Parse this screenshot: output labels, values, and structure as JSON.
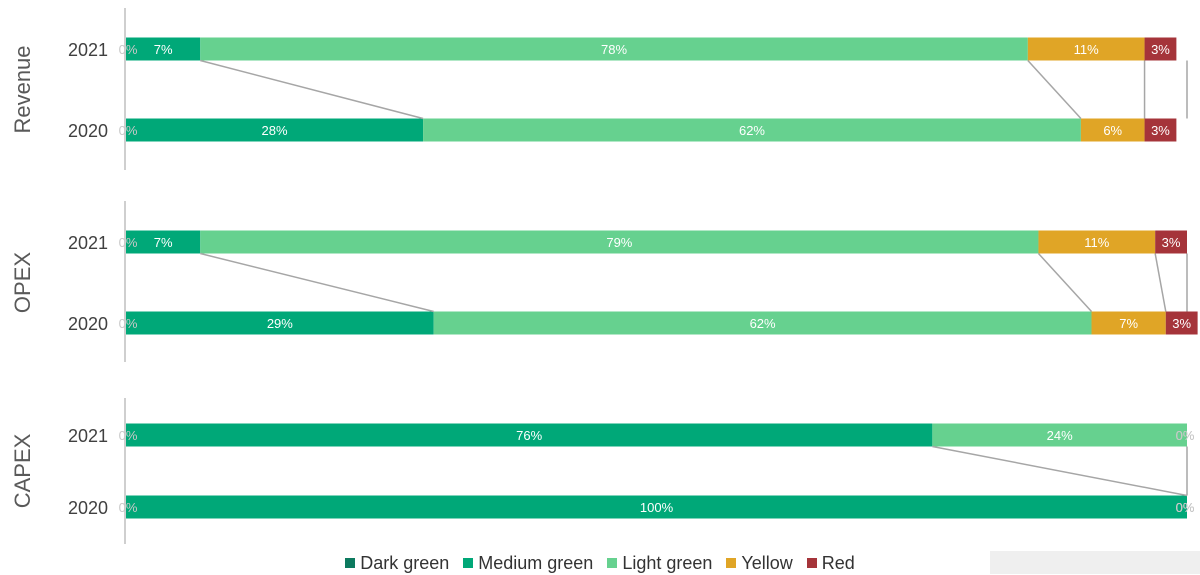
{
  "colors": {
    "Dark green": "#0d7a5f",
    "Medium green": "#00a878",
    "Light green": "#66d18f",
    "Yellow": "#e0a526",
    "Red": "#a5343a",
    "connector": "#a6a6a6",
    "axis_line": "#bfbfbf",
    "text": "#595959"
  },
  "legend": [
    "Dark green",
    "Medium green",
    "Light green",
    "Yellow",
    "Red"
  ],
  "chart_data": {
    "type": "bar",
    "orientation": "horizontal-stacked-100",
    "series_names": [
      "Dark green",
      "Medium green",
      "Light green",
      "Yellow",
      "Red"
    ],
    "groups": [
      {
        "name": "Revenue",
        "bars": [
          {
            "year": "2021",
            "values": [
              0,
              7,
              78,
              11,
              3
            ]
          },
          {
            "year": "2020",
            "values": [
              0,
              28,
              62,
              6,
              3
            ]
          }
        ]
      },
      {
        "name": "OPEX",
        "bars": [
          {
            "year": "2021",
            "values": [
              0,
              7,
              79,
              11,
              3
            ]
          },
          {
            "year": "2020",
            "values": [
              0,
              29,
              62,
              7,
              3
            ]
          }
        ]
      },
      {
        "name": "CAPEX",
        "bars": [
          {
            "year": "2021",
            "values": [
              0,
              76,
              24,
              0,
              0
            ]
          },
          {
            "year": "2020",
            "values": [
              0,
              100,
              0,
              0,
              0
            ]
          }
        ]
      }
    ],
    "legend_position": "bottom"
  }
}
